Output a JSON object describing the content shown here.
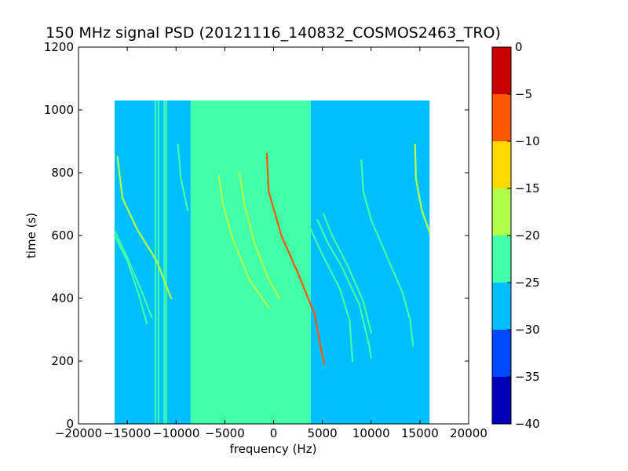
{
  "chart_data": {
    "type": "heatmap",
    "title": "150 MHz signal PSD (20121116_140832_COSMOS2463_TRO)",
    "xlabel": "frequency (Hz)",
    "ylabel": "time (s)",
    "xlim": [
      -20000,
      20000
    ],
    "ylim": [
      0,
      1200
    ],
    "xticks": [
      -20000,
      -15000,
      -10000,
      -5000,
      0,
      5000,
      10000,
      15000,
      20000
    ],
    "yticks": [
      0,
      200,
      400,
      600,
      800,
      1000,
      1200
    ],
    "data_extent": {
      "x": [
        -16300,
        16000
      ],
      "y": [
        0,
        1030
      ]
    },
    "colorbar": {
      "levels": [
        -40,
        -35,
        -30,
        -25,
        -20,
        -15,
        -10,
        -5,
        0
      ],
      "tick_labels": [
        "−40",
        "−35",
        "−30",
        "−25",
        "−20",
        "−15",
        "−10",
        "−5",
        "0"
      ],
      "colors": [
        "#0000b8",
        "#0048ff",
        "#00c0ff",
        "#40ffa8",
        "#b0ff48",
        "#ffd800",
        "#ff5800",
        "#c80000"
      ]
    },
    "background_bands": [
      {
        "x": [
          -16300,
          -8500
        ],
        "level": -27.5
      },
      {
        "x": [
          -8500,
          3800
        ],
        "level": -22.5
      },
      {
        "x": [
          3800,
          16000
        ],
        "level": -27.5
      }
    ],
    "vertical_lines": [
      {
        "x": -12100,
        "y": [
          0,
          1030
        ],
        "level": -22.5
      },
      {
        "x": -11800,
        "y": [
          0,
          1030
        ],
        "level": -22.5
      },
      {
        "x": -11200,
        "y": [
          0,
          1030
        ],
        "level": -22.5
      },
      {
        "x": -11000,
        "y": [
          0,
          1030
        ],
        "level": -22.5
      }
    ],
    "tracks": [
      {
        "level": -7.5,
        "points": [
          [
            -700,
            860
          ],
          [
            -500,
            740
          ],
          [
            800,
            600
          ],
          [
            2500,
            480
          ],
          [
            4200,
            350
          ],
          [
            4800,
            250
          ],
          [
            5200,
            190
          ]
        ]
      },
      {
        "level": -17.5,
        "points": [
          [
            -3500,
            800
          ],
          [
            -3000,
            700
          ],
          [
            -2000,
            580
          ],
          [
            -500,
            460
          ],
          [
            600,
            400
          ]
        ]
      },
      {
        "level": -17.5,
        "points": [
          [
            -5600,
            790
          ],
          [
            -5200,
            700
          ],
          [
            -4200,
            590
          ],
          [
            -2500,
            460
          ],
          [
            -500,
            370
          ]
        ]
      },
      {
        "level": -17.5,
        "points": [
          [
            -16000,
            850
          ],
          [
            -15500,
            720
          ],
          [
            -14000,
            620
          ],
          [
            -12000,
            520
          ],
          [
            -10500,
            400
          ]
        ]
      },
      {
        "level": -22.5,
        "points": [
          [
            -16300,
            615
          ],
          [
            -15000,
            530
          ],
          [
            -13500,
            420
          ],
          [
            -12500,
            340
          ]
        ]
      },
      {
        "level": -22.5,
        "points": [
          [
            -16300,
            600
          ],
          [
            -15000,
            520
          ],
          [
            -13800,
            410
          ],
          [
            -13000,
            320
          ]
        ]
      },
      {
        "level": -22.5,
        "points": [
          [
            3200,
            760
          ],
          [
            3500,
            640
          ],
          [
            5000,
            540
          ],
          [
            6800,
            430
          ],
          [
            7800,
            330
          ],
          [
            8100,
            200
          ]
        ]
      },
      {
        "level": -22.5,
        "points": [
          [
            4500,
            650
          ],
          [
            5500,
            580
          ],
          [
            7000,
            500
          ],
          [
            8800,
            380
          ],
          [
            9800,
            250
          ],
          [
            10000,
            210
          ]
        ]
      },
      {
        "level": -22.5,
        "points": [
          [
            5100,
            670
          ],
          [
            6000,
            600
          ],
          [
            7500,
            510
          ],
          [
            9200,
            390
          ],
          [
            10000,
            290
          ]
        ]
      },
      {
        "level": -22.5,
        "points": [
          [
            9000,
            840
          ],
          [
            9200,
            740
          ],
          [
            10000,
            650
          ],
          [
            11800,
            520
          ],
          [
            13200,
            420
          ],
          [
            14000,
            330
          ],
          [
            14300,
            250
          ]
        ]
      },
      {
        "level": -17.5,
        "points": [
          [
            14500,
            890
          ],
          [
            14600,
            780
          ],
          [
            15200,
            680
          ],
          [
            16000,
            610
          ]
        ]
      },
      {
        "level": -22.5,
        "points": [
          [
            -9800,
            890
          ],
          [
            -9500,
            780
          ],
          [
            -8800,
            680
          ]
        ]
      }
    ]
  }
}
